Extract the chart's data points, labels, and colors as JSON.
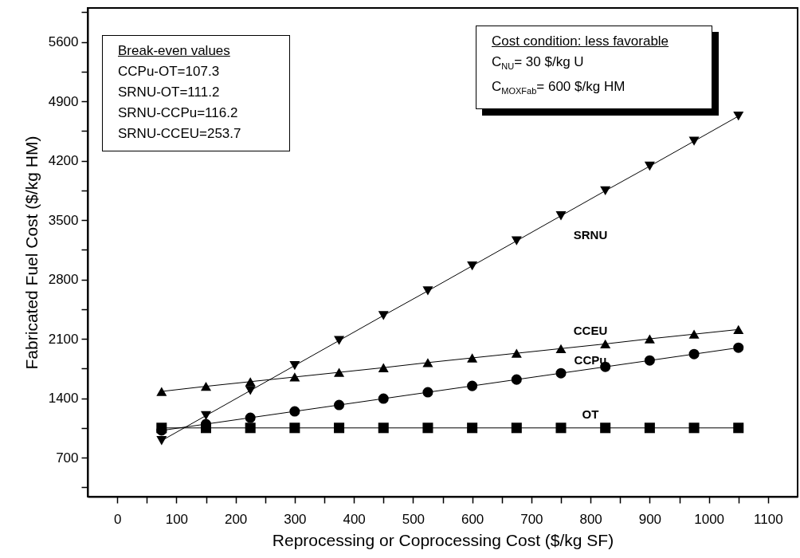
{
  "chart_data": {
    "type": "line",
    "xlabel": "Reprocessing or Coprocessing Cost ($/kg SF)",
    "ylabel": "Fabricated Fuel Cost ($/kg HM)",
    "x": [
      75,
      150,
      225,
      300,
      375,
      450,
      525,
      600,
      675,
      750,
      825,
      900,
      975,
      1050
    ],
    "series": [
      {
        "name": "OT",
        "color": "#000000",
        "marker": "square",
        "values": [
          1050,
          1050,
          1050,
          1050,
          1050,
          1050,
          1050,
          1050,
          1050,
          1050,
          1050,
          1050,
          1050,
          1050
        ]
      },
      {
        "name": "CCPu",
        "color": "#000000",
        "marker": "circle",
        "values": [
          1020,
          1095,
          1170,
          1245,
          1320,
          1395,
          1470,
          1545,
          1620,
          1695,
          1770,
          1845,
          1920,
          1995
        ]
      },
      {
        "name": "CCEU",
        "color": "#000000",
        "marker": "triangle",
        "values": [
          1480,
          1540,
          1595,
          1650,
          1705,
          1760,
          1820,
          1875,
          1930,
          1985,
          2040,
          2100,
          2155,
          2210
        ]
      },
      {
        "name": "SRNU",
        "color": "#000000",
        "marker": "triangle-down",
        "values": [
          900,
          1195,
          1490,
          1785,
          2080,
          2375,
          2665,
          2960,
          3255,
          3550,
          3845,
          4135,
          4430,
          4725
        ]
      }
    ],
    "xlim": [
      -50,
      1150
    ],
    "xticks": [
      0,
      {
        "value": 50,
        "label": null
      },
      100,
      {
        "value": 150,
        "label": null
      },
      200,
      {
        "value": 250,
        "label": null
      },
      300,
      {
        "value": 350,
        "label": null
      },
      400,
      {
        "value": 450,
        "label": null
      },
      500,
      {
        "value": 550,
        "label": null
      },
      600,
      {
        "value": 650,
        "label": null
      },
      700,
      {
        "value": 750,
        "label": null
      },
      800,
      {
        "value": 850,
        "label": null
      },
      900,
      {
        "value": 950,
        "label": null
      },
      1000,
      {
        "value": 1050,
        "label": null
      },
      1100
    ],
    "ylim": [
      240,
      6000
    ],
    "yticks": [
      {
        "value": 350,
        "label": null
      },
      700,
      {
        "value": 1050,
        "label": null
      },
      1400,
      {
        "value": 1750,
        "label": null
      },
      2100,
      {
        "value": 2450,
        "label": null
      },
      2800,
      {
        "value": 3150,
        "label": null
      },
      3500,
      {
        "value": 3850,
        "label": null
      },
      4200,
      {
        "value": 4550,
        "label": null
      },
      4900,
      {
        "value": 5250,
        "label": null
      },
      5600,
      {
        "value": 5950,
        "label": null
      }
    ],
    "grid": false,
    "line_style": "solid",
    "annotations": [
      "Break-even values",
      "CCPu-OT=107.3",
      "SRNU-OT=111.2",
      "SRNU-CCPu=116.2",
      "SRNU-CCEU=253.7",
      "Cost condition: less favorable",
      "C$_{NU}$= 30 $/kg U",
      "C$_{MOXFab}$= 600 $/kg HM"
    ]
  }
}
